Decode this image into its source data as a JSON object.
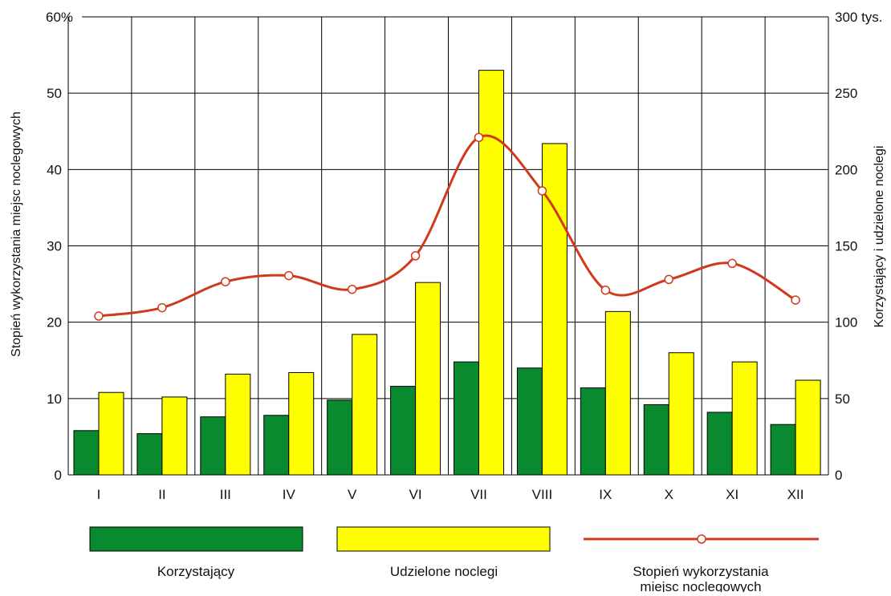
{
  "chart_data": {
    "type": "bar",
    "categories": [
      "I",
      "II",
      "III",
      "IV",
      "V",
      "VI",
      "VII",
      "VIII",
      "IX",
      "X",
      "XI",
      "XII"
    ],
    "series": [
      {
        "name": "Korzystający",
        "type": "bar",
        "axis": "right",
        "color": "#0a8a2e",
        "values": [
          29,
          27,
          38,
          39,
          49,
          58,
          74,
          70,
          57,
          46,
          41,
          33
        ]
      },
      {
        "name": "Udzielone noclegi",
        "type": "bar",
        "axis": "right",
        "color": "#ffff00",
        "values": [
          54,
          51,
          66,
          67,
          92,
          126,
          265,
          217,
          107,
          80,
          74,
          62
        ]
      },
      {
        "name": "Stopień wykorzystania\nmiejsc noclegowych",
        "type": "line",
        "axis": "left",
        "color": "#d03a1c",
        "values": [
          20.8,
          21.9,
          25.3,
          26.1,
          24.3,
          28.7,
          44.2,
          37.2,
          24.2,
          25.6,
          27.7,
          22.9
        ]
      }
    ],
    "left_axis": {
      "label": "Stopień wykorzystania miejsc noclegowych",
      "ylim": [
        0,
        60
      ],
      "ticks": [
        "0",
        "10",
        "20",
        "30",
        "40",
        "50",
        "60%"
      ]
    },
    "right_axis": {
      "label": "Korzystający i udzielone noclegi",
      "ylim": [
        0,
        300
      ],
      "ticks": [
        "0",
        "50",
        "100",
        "150",
        "200",
        "250",
        "300 tys."
      ]
    },
    "legend": {
      "placement": "bottom",
      "items": [
        "Korzystający",
        "Udzielone noclegi",
        "Stopień wykorzystania",
        "miejsc noclegowych"
      ]
    },
    "grid": true
  }
}
